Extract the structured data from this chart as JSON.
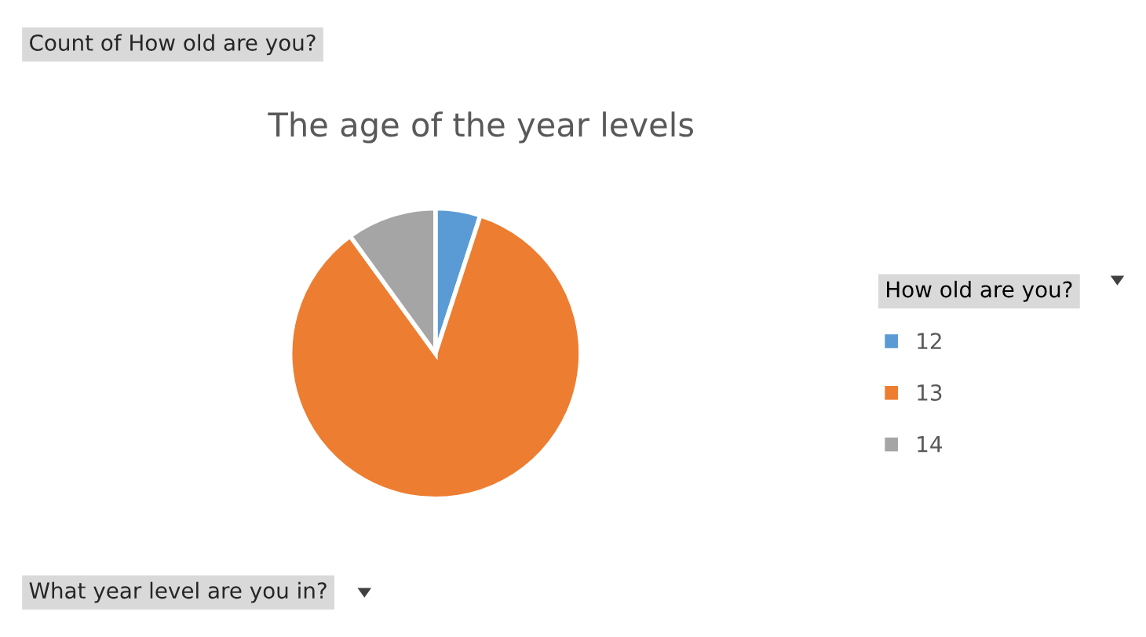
{
  "chart_data": {
    "type": "pie",
    "title": "The age of the year levels",
    "legend_title": "How old are you?",
    "categories": [
      "12",
      "13",
      "14"
    ],
    "values": [
      5,
      85,
      10
    ],
    "colors": [
      "#5b9bd5",
      "#ed7d31",
      "#a5a5a5"
    ],
    "legend": "right",
    "annotations": [
      "Count of How old are you?",
      "What year level are you in?"
    ]
  }
}
